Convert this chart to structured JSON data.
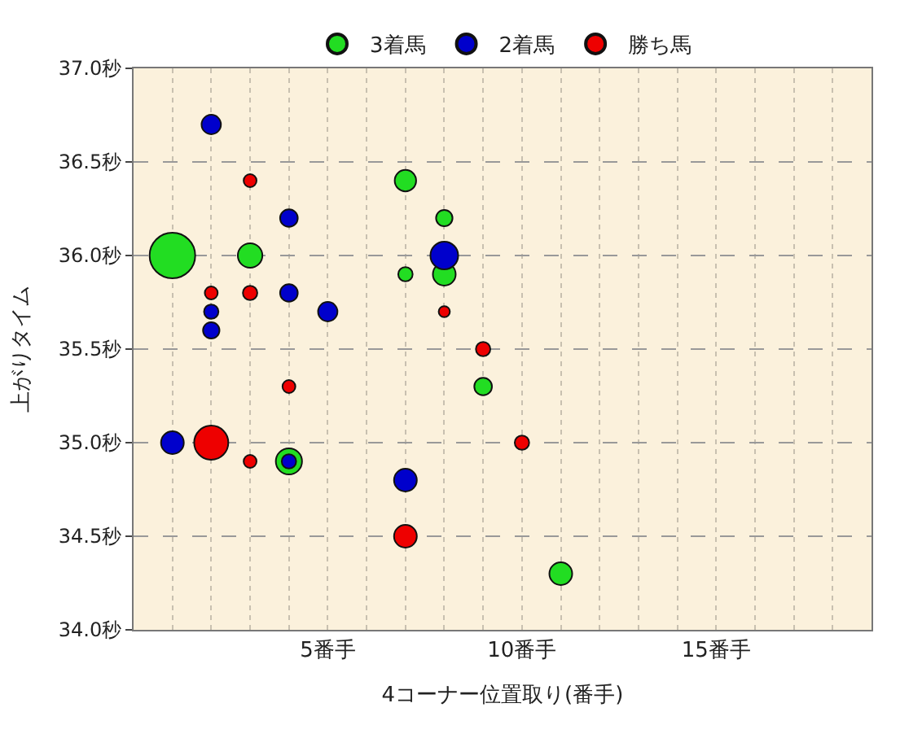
{
  "chart_data": {
    "type": "bubble",
    "xlabel": "4コーナー位置取り(番手)",
    "ylabel": "上がりタイム",
    "xlim": [
      0,
      19
    ],
    "xticks": [
      {
        "value": 1,
        "label": null
      },
      {
        "value": 2,
        "label": null
      },
      {
        "value": 3,
        "label": null
      },
      {
        "value": 4,
        "label": null
      },
      {
        "value": 5,
        "label": "5番手"
      },
      {
        "value": 6,
        "label": null
      },
      {
        "value": 7,
        "label": null
      },
      {
        "value": 8,
        "label": null
      },
      {
        "value": 9,
        "label": null
      },
      {
        "value": 10,
        "label": "10番手"
      },
      {
        "value": 11,
        "label": null
      },
      {
        "value": 12,
        "label": null
      },
      {
        "value": 13,
        "label": null
      },
      {
        "value": 14,
        "label": null
      },
      {
        "value": 15,
        "label": "15番手"
      },
      {
        "value": 16,
        "label": null
      },
      {
        "value": 17,
        "label": null
      },
      {
        "value": 18,
        "label": null
      }
    ],
    "ylim": [
      34.0,
      37.0
    ],
    "yticks": [
      {
        "value": 34.0,
        "label": "34.0秒"
      },
      {
        "value": 34.5,
        "label": "34.5秒"
      },
      {
        "value": 35.0,
        "label": "35.0秒"
      },
      {
        "value": 35.5,
        "label": "35.5秒"
      },
      {
        "value": 36.0,
        "label": "36.0秒"
      },
      {
        "value": 36.5,
        "label": "36.5秒"
      },
      {
        "value": 37.0,
        "label": "37.0秒"
      }
    ],
    "grid": true,
    "legend": "top",
    "series": [
      {
        "name": "3着馬",
        "color": "#22dd22",
        "x": [
          1,
          3,
          7,
          8,
          7,
          8,
          9,
          4,
          11
        ],
        "values": [
          36.0,
          36.0,
          36.4,
          36.2,
          35.9,
          35.9,
          35.3,
          34.9,
          34.3
        ],
        "sizes": [
          1,
          0.29,
          0.22,
          0.13,
          0.1,
          0.25,
          0.15,
          0.33,
          0.25
        ]
      },
      {
        "name": "2着馬",
        "color": "#0000cc",
        "x": [
          2,
          4,
          8,
          4,
          2,
          5,
          2,
          1,
          4,
          7
        ],
        "values": [
          36.7,
          36.2,
          36.0,
          35.8,
          35.7,
          35.7,
          35.6,
          35.0,
          34.9,
          34.8
        ],
        "sizes": [
          0.18,
          0.15,
          0.37,
          0.15,
          0.1,
          0.18,
          0.13,
          0.25,
          0.1,
          0.25
        ]
      },
      {
        "name": "勝ち馬",
        "color": "#ee0000",
        "x": [
          3,
          2,
          3,
          8,
          9,
          4,
          2,
          3,
          10,
          7
        ],
        "values": [
          36.4,
          35.8,
          35.8,
          35.7,
          35.5,
          35.3,
          35.0,
          34.9,
          35.0,
          34.5
        ],
        "sizes": [
          0.08,
          0.08,
          0.1,
          0.06,
          0.1,
          0.08,
          0.56,
          0.08,
          0.1,
          0.25
        ]
      }
    ]
  }
}
